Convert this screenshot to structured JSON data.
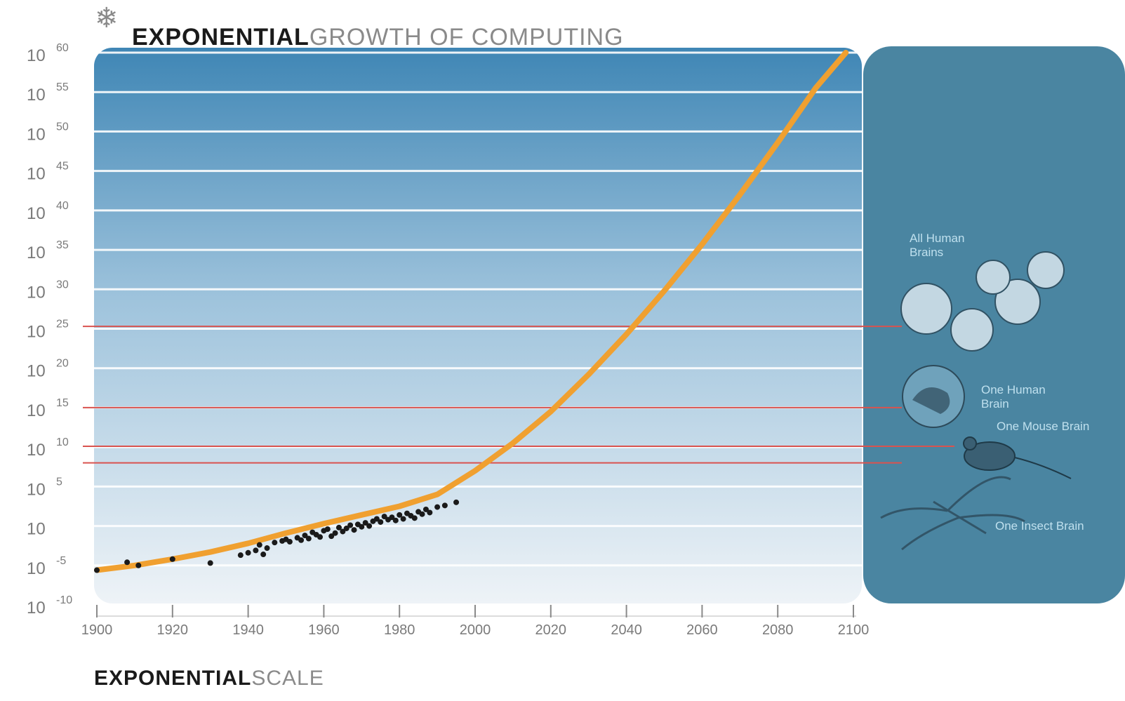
{
  "title_bold": "EXPONENTIAL",
  "title_light": "GROWTH OF COMPUTING",
  "subtitle_bold": "EXPONENTIAL",
  "subtitle_light": "SCALE",
  "colors": {
    "plot_bg_top": "#3f86b5",
    "plot_bg_bottom": "#eef3f7",
    "side_panel": "#4a85a1",
    "curve": "#f0a030",
    "reference_line": "#d9534f",
    "grid_line": "#ffffff",
    "point": "#1a1a1a"
  },
  "side_panel": {
    "labels": [
      {
        "text": "All Human Brains"
      },
      {
        "text": "One Human Brain"
      },
      {
        "text": "One Mouse Brain"
      },
      {
        "text": "One Insect Brain"
      }
    ]
  },
  "chart_data": {
    "type": "scatter",
    "title": "EXPONENTIAL GROWTH OF COMPUTING",
    "xlabel": "",
    "ylabel": "",
    "xlim": [
      1900,
      2100
    ],
    "ylim": [
      -10,
      60
    ],
    "y_scale": "log10 (ticks shown as 10^n)",
    "x_ticks": [
      "1900",
      "1920",
      "1940",
      "1960",
      "1980",
      "2000",
      "2020",
      "2040",
      "2060",
      "2080",
      "2100"
    ],
    "y_ticks": [
      {
        "base": "10",
        "exp": "-10",
        "value": -10
      },
      {
        "base": "10",
        "exp": "-5",
        "value": -5
      },
      {
        "base": "10",
        "exp": "",
        "value": 0
      },
      {
        "base": "10",
        "exp": "5",
        "value": 5
      },
      {
        "base": "10",
        "exp": "10",
        "value": 10
      },
      {
        "base": "10",
        "exp": "15",
        "value": 15
      },
      {
        "base": "10",
        "exp": "20",
        "value": 20
      },
      {
        "base": "10",
        "exp": "25",
        "value": 25
      },
      {
        "base": "10",
        "exp": "30",
        "value": 30
      },
      {
        "base": "10",
        "exp": "35",
        "value": 35
      },
      {
        "base": "10",
        "exp": "40",
        "value": 40
      },
      {
        "base": "10",
        "exp": "45",
        "value": 45
      },
      {
        "base": "10",
        "exp": "50",
        "value": 50
      },
      {
        "base": "10",
        "exp": "55",
        "value": 55
      },
      {
        "base": "10",
        "exp": "60",
        "value": 60
      }
    ],
    "grid": true,
    "series": [
      {
        "type": "scatter",
        "points": [
          [
            1900,
            -5.6
          ],
          [
            1908,
            -4.6
          ],
          [
            1911,
            -5.0
          ],
          [
            1920,
            -4.2
          ],
          [
            1930,
            -4.7
          ],
          [
            1938,
            -3.7
          ],
          [
            1940,
            -3.4
          ],
          [
            1942,
            -3.1
          ],
          [
            1943,
            -2.4
          ],
          [
            1944,
            -3.6
          ],
          [
            1945,
            -2.8
          ],
          [
            1947,
            -2.1
          ],
          [
            1949,
            -1.9
          ],
          [
            1950,
            -1.7
          ],
          [
            1951,
            -2.0
          ],
          [
            1953,
            -1.5
          ],
          [
            1954,
            -1.8
          ],
          [
            1955,
            -1.2
          ],
          [
            1956,
            -1.6
          ],
          [
            1957,
            -0.8
          ],
          [
            1958,
            -1.1
          ],
          [
            1959,
            -1.4
          ],
          [
            1960,
            -0.6
          ],
          [
            1961,
            -0.4
          ],
          [
            1962,
            -1.3
          ],
          [
            1963,
            -0.9
          ],
          [
            1964,
            -0.2
          ],
          [
            1965,
            -0.7
          ],
          [
            1966,
            -0.3
          ],
          [
            1967,
            0.1
          ],
          [
            1968,
            -0.5
          ],
          [
            1969,
            0.2
          ],
          [
            1970,
            -0.1
          ],
          [
            1971,
            0.4
          ],
          [
            1972,
            0.0
          ],
          [
            1973,
            0.6
          ],
          [
            1974,
            0.9
          ],
          [
            1975,
            0.5
          ],
          [
            1976,
            1.2
          ],
          [
            1977,
            0.8
          ],
          [
            1978,
            1.1
          ],
          [
            1979,
            0.7
          ],
          [
            1980,
            1.4
          ],
          [
            1981,
            0.9
          ],
          [
            1982,
            1.6
          ],
          [
            1983,
            1.3
          ],
          [
            1984,
            1.0
          ],
          [
            1985,
            1.8
          ],
          [
            1986,
            1.5
          ],
          [
            1987,
            2.1
          ],
          [
            1988,
            1.7
          ],
          [
            1990,
            2.4
          ],
          [
            1992,
            2.6
          ],
          [
            1995,
            3.0
          ]
        ]
      },
      {
        "type": "line",
        "curve": [
          [
            1900,
            -5.6
          ],
          [
            1910,
            -5.0
          ],
          [
            1920,
            -4.2
          ],
          [
            1930,
            -3.3
          ],
          [
            1940,
            -2.2
          ],
          [
            1950,
            -0.9
          ],
          [
            1960,
            0.3
          ],
          [
            1970,
            1.4
          ],
          [
            1980,
            2.5
          ],
          [
            1990,
            4.0
          ],
          [
            2000,
            7.0
          ],
          [
            2010,
            10.5
          ],
          [
            2020,
            14.5
          ],
          [
            2030,
            19.2
          ],
          [
            2040,
            24.3
          ],
          [
            2050,
            29.8
          ],
          [
            2060,
            35.7
          ],
          [
            2070,
            42.0
          ],
          [
            2080,
            48.6
          ],
          [
            2090,
            55.5
          ],
          [
            2098,
            60.0
          ]
        ]
      }
    ],
    "reference_lines": [
      {
        "y": 25.3
      },
      {
        "y": 15.0
      },
      {
        "y": 10.1
      },
      {
        "y": 8.0
      }
    ]
  }
}
